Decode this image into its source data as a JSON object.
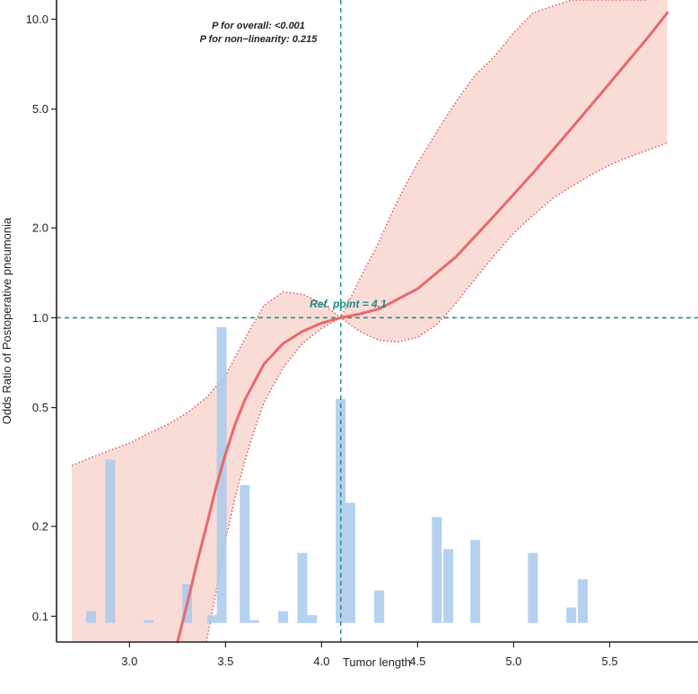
{
  "chart_data": {
    "type": "line",
    "title": "",
    "xlabel": "Tumor length",
    "ylabel": "Odds Ratio of Postoperative pneumonia",
    "y_scale": "log",
    "xlim": [
      2.62,
      5.96
    ],
    "ylim": [
      0.082,
      11.6
    ],
    "x_ticks": [
      3.0,
      3.5,
      4.0,
      4.5,
      5.0,
      5.5
    ],
    "x_tick_labels": [
      "3.0",
      "3.5",
      "4.0",
      "4.5",
      "5.0",
      "5.5"
    ],
    "y_ticks": [
      0.1,
      0.2,
      0.5,
      1.0,
      2.0,
      5.0,
      10.0
    ],
    "y_tick_labels": [
      "0.1",
      "0.2",
      "0.5",
      "1.0",
      "2.0",
      "5.0",
      "10.0"
    ],
    "annotations": [
      "P for overall: <0.001",
      "P for non−linearity: 0.215"
    ],
    "reference": {
      "x": 4.1,
      "y": 1.0,
      "label": "Ref. point = 4.1"
    },
    "colors": {
      "curve": "#e8686a",
      "band": "#fadcd6",
      "band_edge": "#d85c5c",
      "hist": "#a9c9ec",
      "refline": "#1a8a82"
    },
    "series": [
      {
        "name": "OR",
        "x": [
          3.25,
          3.3,
          3.35,
          3.4,
          3.45,
          3.5,
          3.55,
          3.6,
          3.7,
          3.8,
          3.9,
          4.0,
          4.1,
          4.2,
          4.3,
          4.5,
          4.7,
          4.9,
          5.1,
          5.3,
          5.5,
          5.7,
          5.8
        ],
        "y": [
          0.082,
          0.11,
          0.15,
          0.2,
          0.27,
          0.35,
          0.44,
          0.53,
          0.7,
          0.82,
          0.9,
          0.96,
          1.0,
          1.03,
          1.07,
          1.25,
          1.6,
          2.2,
          3.05,
          4.3,
          6.1,
          8.7,
          10.5
        ]
      },
      {
        "name": "Upper CI",
        "x": [
          2.7,
          2.8,
          2.9,
          3.0,
          3.1,
          3.2,
          3.3,
          3.4,
          3.5,
          3.6,
          3.7,
          3.8,
          3.9,
          4.0,
          4.1,
          4.2,
          4.3,
          4.4,
          4.5,
          4.6,
          4.7,
          4.8,
          4.9,
          5.0,
          5.1,
          5.3,
          5.5,
          5.7
        ],
        "y": [
          0.32,
          0.34,
          0.36,
          0.38,
          0.41,
          0.44,
          0.48,
          0.54,
          0.64,
          0.85,
          1.1,
          1.22,
          1.2,
          1.12,
          1.0,
          1.35,
          1.8,
          2.5,
          3.3,
          4.2,
          5.3,
          6.5,
          7.5,
          9.0,
          10.5,
          12.0,
          12.0,
          12.0
        ]
      },
      {
        "name": "Lower CI",
        "x": [
          3.4,
          3.45,
          3.5,
          3.55,
          3.6,
          3.65,
          3.7,
          3.8,
          3.9,
          4.0,
          4.1,
          4.2,
          4.3,
          4.4,
          4.5,
          4.6,
          4.7,
          4.8,
          4.9,
          5.0,
          5.1,
          5.2,
          5.3,
          5.4,
          5.5,
          5.6,
          5.7,
          5.8
        ],
        "y": [
          0.082,
          0.12,
          0.18,
          0.25,
          0.33,
          0.42,
          0.52,
          0.68,
          0.82,
          0.92,
          1.0,
          0.9,
          0.84,
          0.83,
          0.86,
          0.95,
          1.12,
          1.35,
          1.62,
          1.92,
          2.2,
          2.5,
          2.75,
          3.0,
          3.25,
          3.45,
          3.65,
          3.85
        ]
      }
    ],
    "histogram": {
      "x": [
        2.8,
        2.9,
        3.1,
        3.3,
        3.43,
        3.48,
        3.6,
        3.65,
        3.8,
        3.9,
        3.95,
        4.1,
        4.15,
        4.3,
        4.6,
        4.66,
        4.8,
        5.1,
        5.3,
        5.36
      ],
      "height": [
        0.104,
        0.335,
        0.097,
        0.128,
        0.101,
        0.93,
        0.275,
        0.097,
        0.104,
        0.163,
        0.101,
        0.535,
        0.24,
        0.122,
        0.215,
        0.168,
        0.18,
        0.163,
        0.107,
        0.133
      ]
    }
  }
}
